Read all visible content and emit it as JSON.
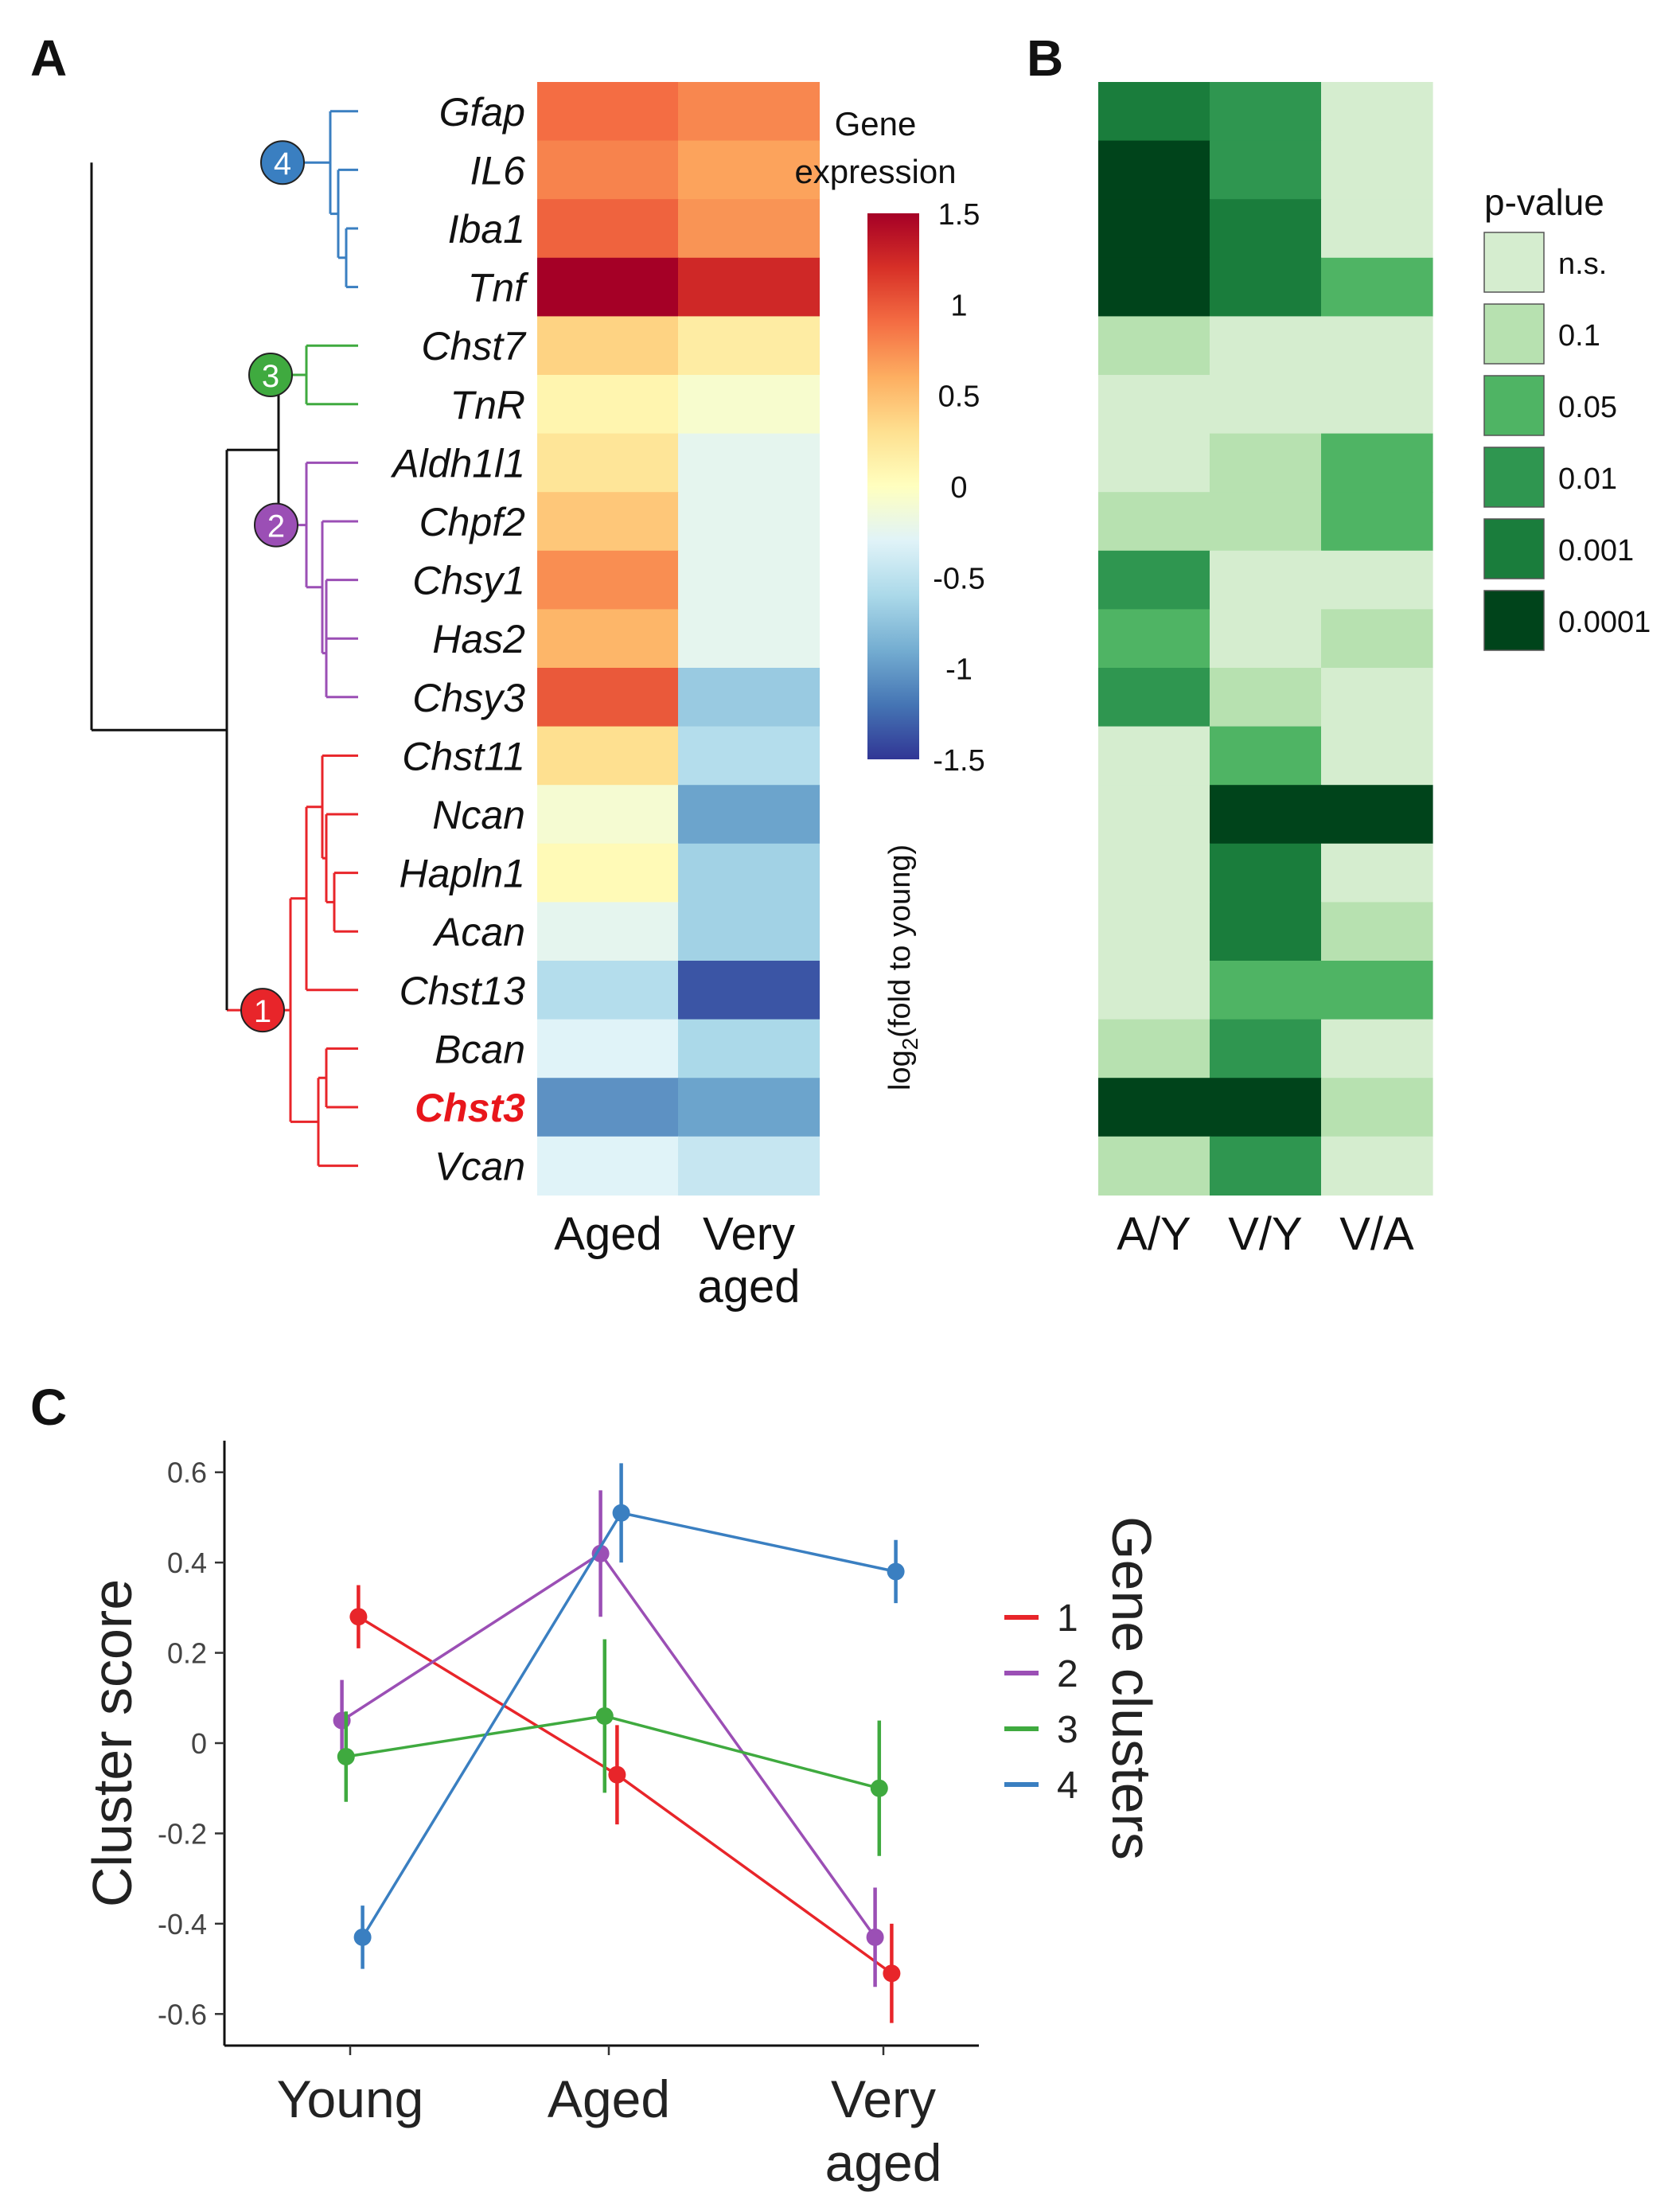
{
  "panels": {
    "A": "A",
    "B": "B",
    "C": "C"
  },
  "chart_data": [
    {
      "type": "heatmap",
      "id": "expression",
      "columns": [
        "Aged",
        "Very aged"
      ],
      "column_labels": [
        [
          "Aged"
        ],
        [
          "Very",
          "aged"
        ]
      ],
      "genes": [
        "Gfap",
        "IL6",
        "Iba1",
        "Tnf",
        "Chst7",
        "TnR",
        "Aldh1l1",
        "Chpf2",
        "Chsy1",
        "Has2",
        "Chsy3",
        "Chst11",
        "Ncan",
        "Hapln1",
        "Acan",
        "Chst13",
        "Bcan",
        "Chst3",
        "Vcan"
      ],
      "highlight_gene": "Chst3",
      "values": [
        [
          0.9,
          0.78
        ],
        [
          0.8,
          0.65
        ],
        [
          0.95,
          0.72
        ],
        [
          1.5,
          1.25
        ],
        [
          0.38,
          0.18
        ],
        [
          0.1,
          -0.08
        ],
        [
          0.25,
          -0.25
        ],
        [
          0.45,
          -0.25
        ],
        [
          0.75,
          -0.25
        ],
        [
          0.55,
          -0.25
        ],
        [
          1.0,
          -0.7
        ],
        [
          0.3,
          -0.55
        ],
        [
          -0.1,
          -0.95
        ],
        [
          0.05,
          -0.65
        ],
        [
          -0.25,
          -0.65
        ],
        [
          -0.55,
          -1.35
        ],
        [
          -0.3,
          -0.6
        ],
        [
          -1.05,
          -0.95
        ],
        [
          -0.3,
          -0.45
        ]
      ],
      "colorbar": {
        "title": [
          "Gene",
          "expression"
        ],
        "ticks": [
          "1.5",
          "1",
          "0.5",
          "0",
          "-0.5",
          "-1",
          "-1.5"
        ],
        "tick_values": [
          1.5,
          1,
          0.5,
          0,
          -0.5,
          -1,
          -1.5
        ],
        "range": [
          -1.5,
          1.5
        ],
        "axis_label_main": "log",
        "axis_label_sub": "2",
        "axis_label_rest": "(fold to young)",
        "stops": [
          "#313695",
          "#4575b4",
          "#74add1",
          "#abd9e9",
          "#e0f3f8",
          "#ffffbf",
          "#fee090",
          "#fdae61",
          "#f46d43",
          "#d73027",
          "#a50026"
        ]
      },
      "dendrogram": {
        "clusters": [
          {
            "id": "4",
            "color": "#3a7fc1",
            "genes": [
              "Gfap",
              "IL6",
              "Iba1",
              "Tnf"
            ]
          },
          {
            "id": "3",
            "color": "#3faa3f",
            "genes": [
              "Chst7",
              "TnR"
            ]
          },
          {
            "id": "2",
            "color": "#9b4fb5",
            "genes": [
              "Aldh1l1",
              "Chpf2",
              "Chsy1",
              "Has2",
              "Chsy3"
            ]
          },
          {
            "id": "1",
            "color": "#e8252a",
            "genes": [
              "Chst11",
              "Ncan",
              "Hapln1",
              "Acan",
              "Chst13",
              "Bcan",
              "Chst3",
              "Vcan"
            ]
          }
        ]
      }
    },
    {
      "type": "heatmap",
      "id": "pvalues",
      "columns": [
        "A/Y",
        "V/Y",
        "V/A"
      ],
      "legend_title": "p-value",
      "legend_labels": [
        "n.s.",
        "0.1",
        "0.05",
        "0.01",
        "0.001",
        "0.0001"
      ],
      "legend_colors": [
        "#d5edcf",
        "#b7e1b0",
        "#4fb464",
        "#2f9650",
        "#1a7d3c",
        "#00441b"
      ],
      "levels": [
        [
          4,
          3,
          0
        ],
        [
          5,
          3,
          0
        ],
        [
          5,
          4,
          0
        ],
        [
          5,
          4,
          2
        ],
        [
          1,
          0,
          0
        ],
        [
          0,
          0,
          0
        ],
        [
          0,
          1,
          2
        ],
        [
          1,
          1,
          2
        ],
        [
          3,
          0,
          0
        ],
        [
          2,
          0,
          1
        ],
        [
          3,
          1,
          0
        ],
        [
          0,
          2,
          0
        ],
        [
          0,
          5,
          5
        ],
        [
          0,
          4,
          0
        ],
        [
          0,
          4,
          1
        ],
        [
          0,
          2,
          2
        ],
        [
          1,
          3,
          0
        ],
        [
          5,
          5,
          1
        ],
        [
          1,
          3,
          0
        ]
      ]
    },
    {
      "type": "line",
      "id": "cluster_scores",
      "categories": [
        "Young",
        "Aged",
        "Very aged"
      ],
      "category_labels": [
        [
          "Young"
        ],
        [
          "Aged"
        ],
        [
          "Very",
          "aged"
        ]
      ],
      "ylabel": "Cluster score",
      "ylim": [
        -0.67,
        0.67
      ],
      "yticks": [
        0.6,
        0.4,
        0.2,
        0,
        -0.2,
        -0.4,
        -0.6
      ],
      "ytick_labels": [
        "0.6",
        "0.4",
        "0.2",
        "0",
        "-0.2",
        "-0.4",
        "-0.6"
      ],
      "legend_title": "Gene clusters",
      "series": [
        {
          "name": "1",
          "color": "#e8252a",
          "values": [
            0.28,
            -0.07,
            -0.51
          ],
          "err": [
            0.07,
            0.11,
            0.11
          ],
          "offset": 0.08
        },
        {
          "name": "2",
          "color": "#9b4fb5",
          "values": [
            0.05,
            0.42,
            -0.43
          ],
          "err": [
            0.09,
            0.14,
            0.11
          ],
          "offset": -0.08
        },
        {
          "name": "3",
          "color": "#3faa3f",
          "values": [
            -0.03,
            0.06,
            -0.1
          ],
          "err": [
            0.1,
            0.17,
            0.15
          ],
          "offset": -0.04
        },
        {
          "name": "4",
          "color": "#3a7fc1",
          "values": [
            -0.43,
            0.51,
            0.38
          ],
          "err": [
            0.07,
            0.11,
            0.07
          ],
          "offset": 0.12
        }
      ]
    }
  ]
}
